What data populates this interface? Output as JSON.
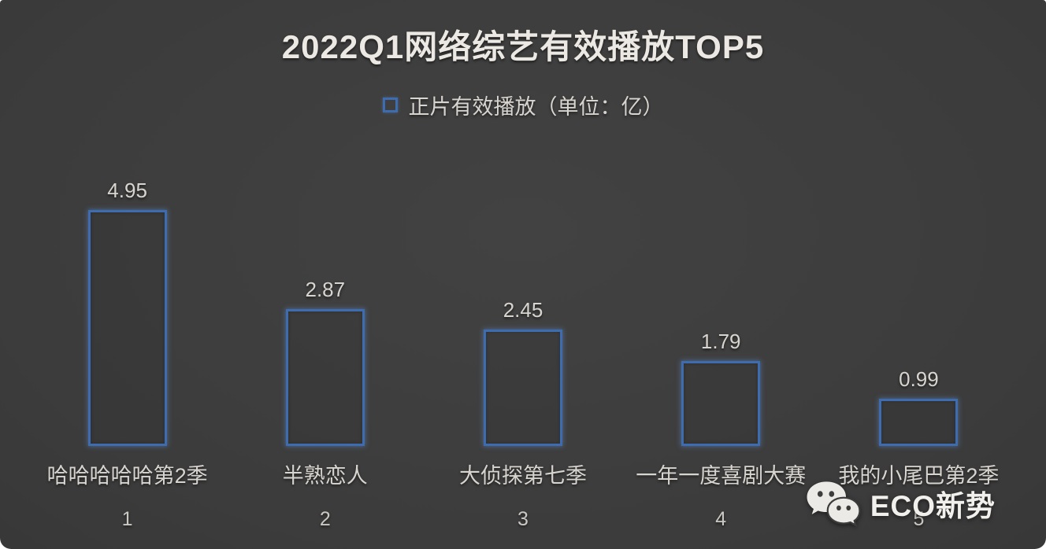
{
  "page": {
    "title": "2022Q1网络综艺有效播放TOP5",
    "legend": {
      "label": "正片有效播放（单位：亿）",
      "marker_color": "#3e6cb0"
    },
    "logo": {
      "icon": "wechat-icon",
      "text": "ECO新势"
    }
  },
  "chart_data": {
    "type": "bar",
    "title": "2022Q1网络综艺有效播放TOP5",
    "legend_entries": [
      "正片有效播放（单位：亿）"
    ],
    "legend_position": "top-center",
    "categories": [
      "哈哈哈哈哈第2季",
      "半熟恋人",
      "大侦探第七季",
      "一年一度喜剧大赛",
      "我的小尾巴第2季"
    ],
    "ranks": [
      "1",
      "2",
      "3",
      "4",
      "5"
    ],
    "values": [
      4.95,
      2.87,
      2.45,
      1.79,
      0.99
    ],
    "data_labels": [
      "4.95",
      "2.87",
      "2.45",
      "1.79",
      "0.99"
    ],
    "unit": "亿",
    "ylim": [
      0,
      5.2
    ],
    "grid": false,
    "axes_visible": false,
    "bar_style": "outlined",
    "bar_border_color": "#3e6cb0",
    "background_color": "#3c3c3c",
    "text_color": "#d8d4cf"
  }
}
